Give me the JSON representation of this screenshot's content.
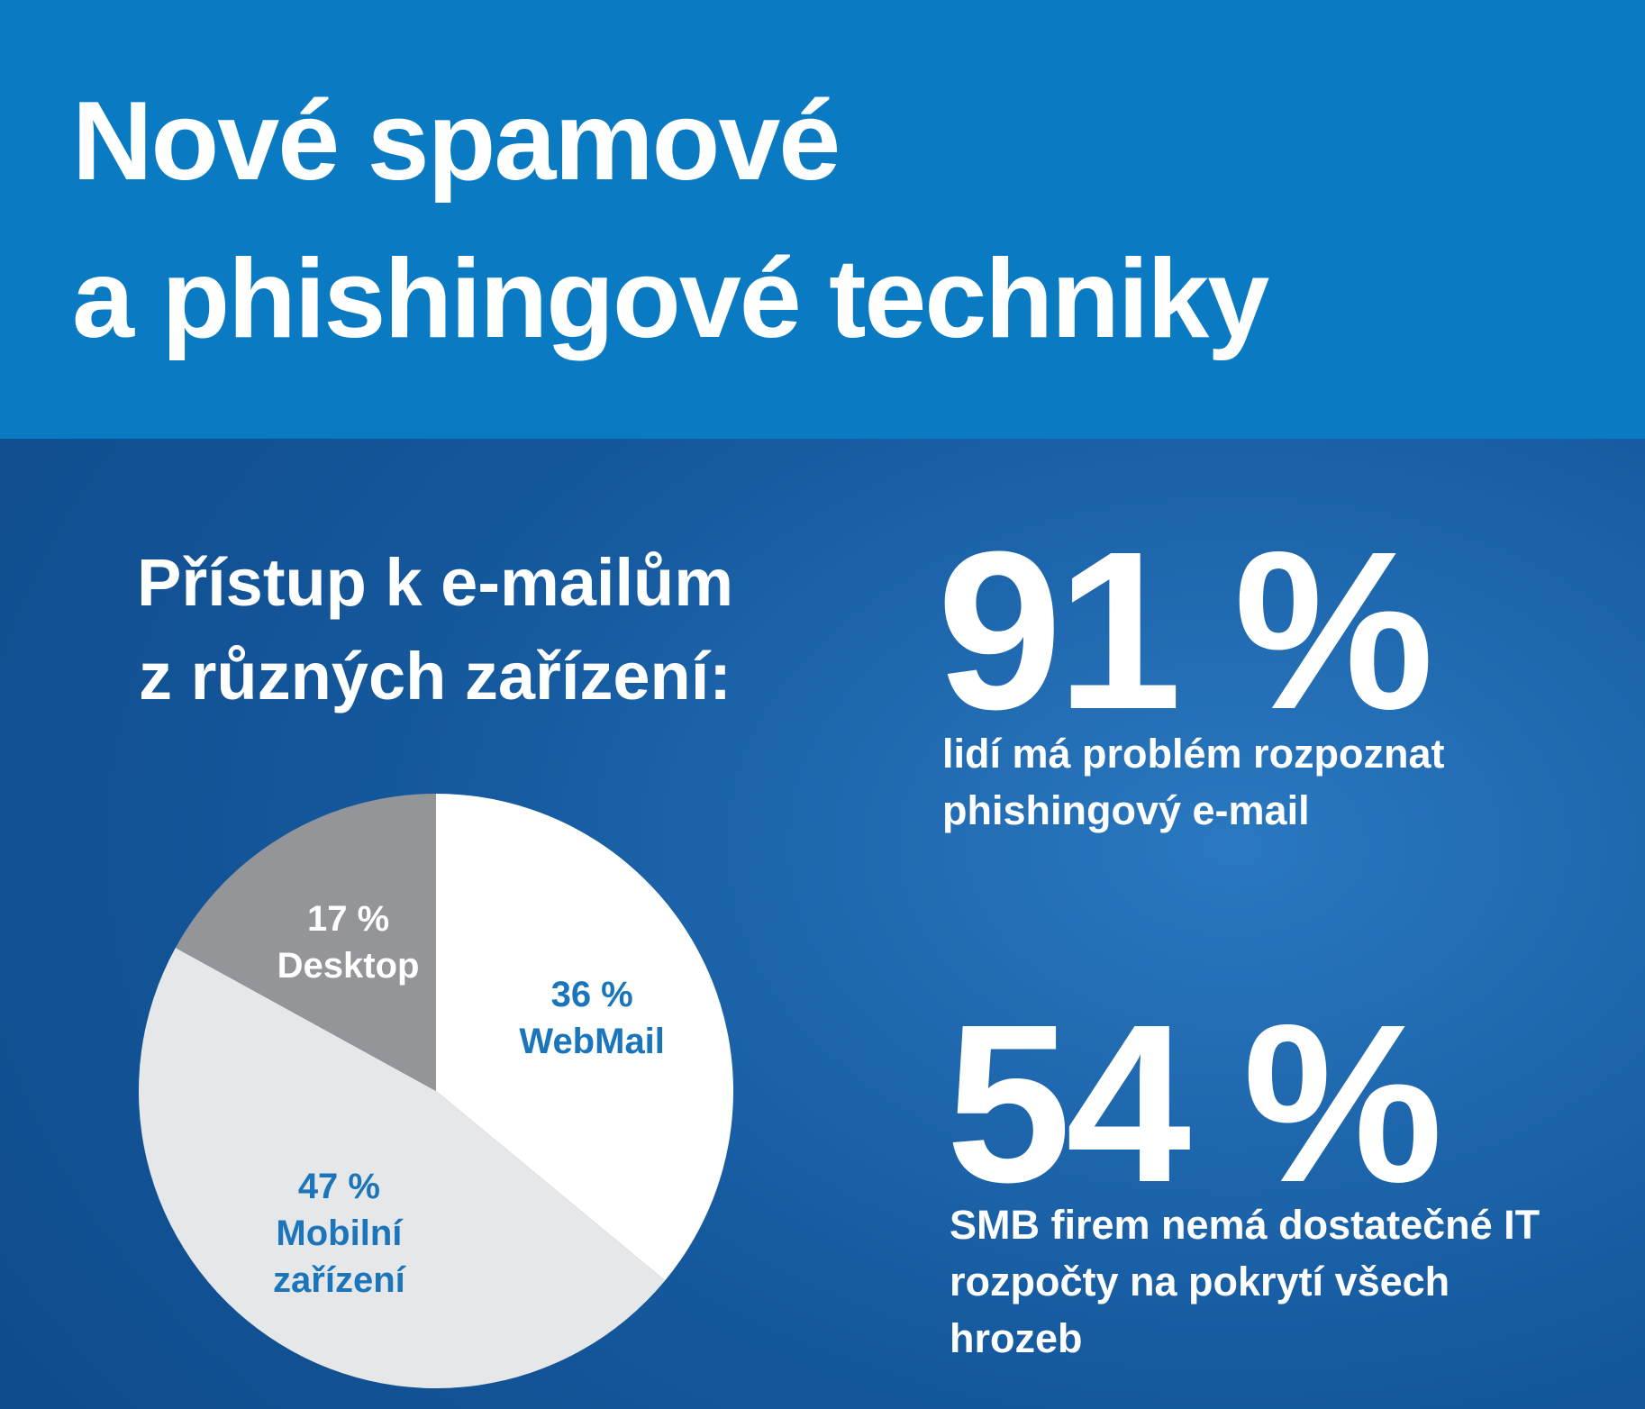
{
  "header": {
    "title_lines": [
      "Nové spamové",
      "a phishingové techniky"
    ]
  },
  "chart_data": {
    "type": "pie",
    "title_lines": [
      "Přístup k e-mailům",
      "z různých zařízení:"
    ],
    "categories": [
      "WebMail",
      "Mobilní zařízení",
      "Desktop"
    ],
    "values": [
      36,
      47,
      17
    ],
    "value_labels": [
      "36 %",
      "47 %",
      "17 %"
    ],
    "colors": [
      "#ffffff",
      "#e6e7e8",
      "#939598"
    ],
    "label_colors": [
      "#1a75bb",
      "#1a75bb",
      "#ffffff"
    ]
  },
  "stats": [
    {
      "value": "91 %",
      "text": "lidí má problém rozpoznat phishingový e-mail"
    },
    {
      "value": "54 %",
      "text": "SMB firem nemá dostatečné IT rozpočty na pokrytí všech hrozeb"
    }
  ]
}
